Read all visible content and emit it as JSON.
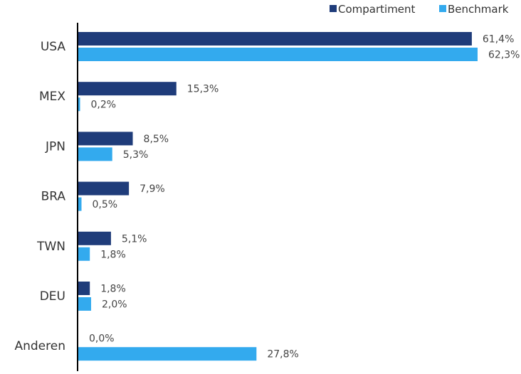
{
  "chart_data": {
    "type": "bar",
    "orientation": "horizontal",
    "categories": [
      "USA",
      "MEX",
      "JPN",
      "BRA",
      "TWN",
      "DEU",
      "Anderen"
    ],
    "series": [
      {
        "name": "Compartiment",
        "color": "#1f3c7a",
        "values": [
          61.4,
          15.3,
          8.5,
          7.9,
          5.1,
          1.8,
          0.0
        ],
        "labels": [
          "61,4%",
          "15,3%",
          "8,5%",
          "7,9%",
          "5,1%",
          "1,8%",
          "0,0%"
        ]
      },
      {
        "name": "Benchmark",
        "color": "#33aaee",
        "values": [
          62.3,
          0.2,
          5.3,
          0.5,
          1.8,
          2.0,
          27.8
        ],
        "labels": [
          "62,3%",
          "0,2%",
          "5,3%",
          "0,5%",
          "1,8%",
          "2,0%",
          "27,8%"
        ]
      }
    ],
    "title": "",
    "xlabel": "",
    "ylabel": "",
    "xlim": [
      0,
      62.3
    ],
    "grid": false,
    "legend_position": "top-right",
    "unit": "%"
  }
}
